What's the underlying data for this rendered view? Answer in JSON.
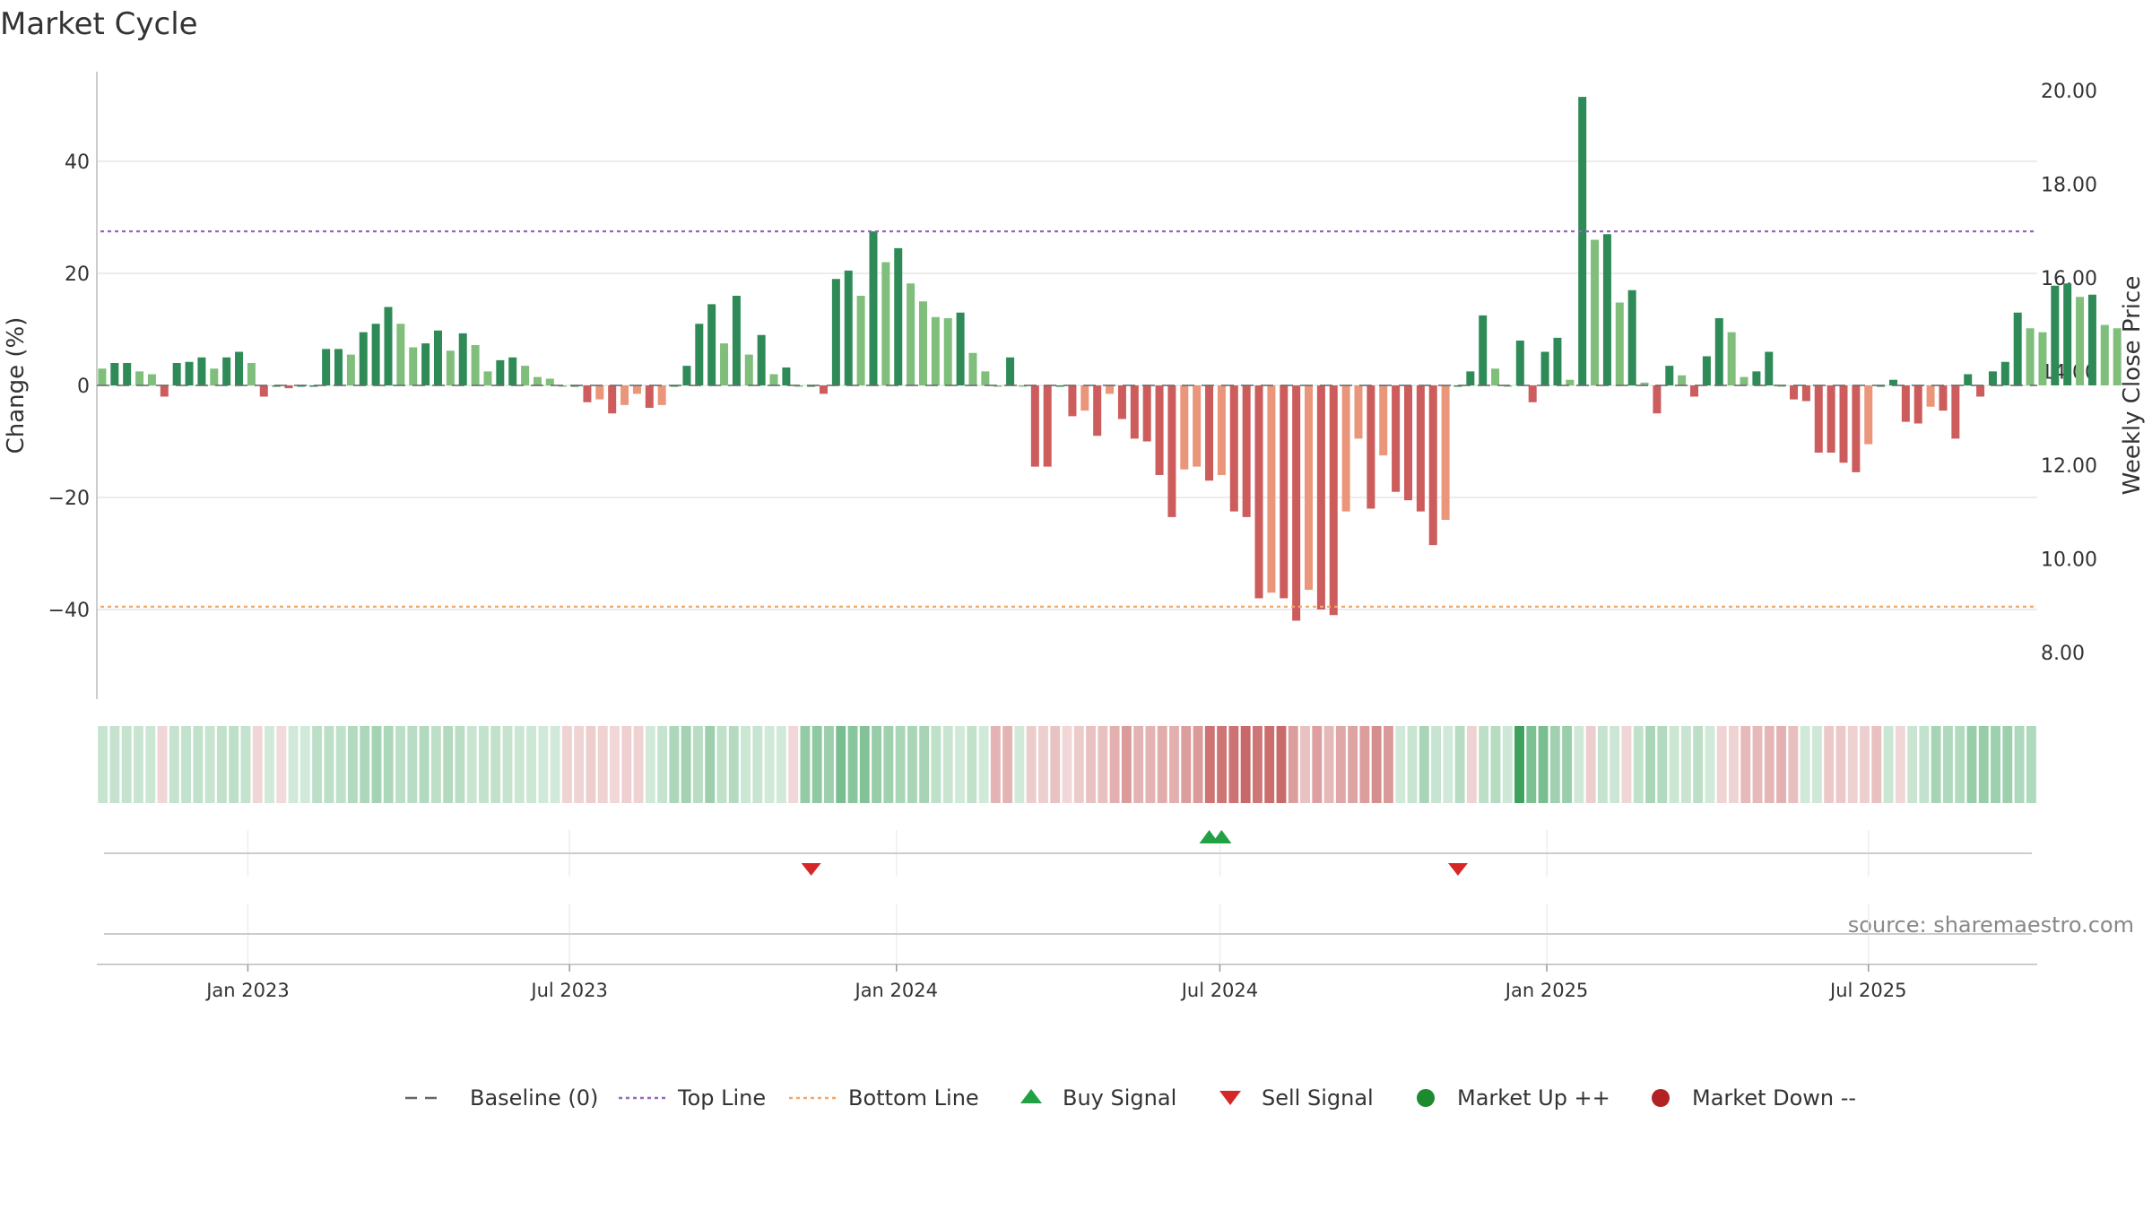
{
  "chart_data": {
    "type": "bar",
    "title": "Market Cycle",
    "ylabel": "Change (%)",
    "ylabel_right": "Weekly Close Price",
    "ylim": [
      -56,
      56
    ],
    "ylim_right": [
      7.0,
      20.4
    ],
    "yticks": [
      -40,
      -20,
      0,
      20,
      40
    ],
    "yticks_right": [
      "8.00",
      "10.00",
      "12.00",
      "14.00",
      "16.00",
      "18.00",
      "20.00"
    ],
    "xlim": [
      "2022-10-08",
      "2025-10-04"
    ],
    "xticks": [
      {
        "date": "2023-01-01",
        "label": "Jan 2023"
      },
      {
        "date": "2023-07-01",
        "label": "Jul 2023"
      },
      {
        "date": "2024-01-01",
        "label": "Jan 2024"
      },
      {
        "date": "2024-07-01",
        "label": "Jul 2024"
      },
      {
        "date": "2025-01-01",
        "label": "Jan 2025"
      },
      {
        "date": "2025-07-01",
        "label": "Jul 2025"
      }
    ],
    "top_line": 27.5,
    "bottom_line": -39.5,
    "start_week": "2022-10-11",
    "values": [
      3,
      4,
      4,
      2.5,
      2,
      -2,
      4,
      4.2,
      5,
      3,
      5,
      6,
      4,
      -2,
      0,
      -0.5,
      0,
      0,
      6.5,
      6.5,
      5.5,
      9.5,
      11,
      14,
      11,
      6.8,
      7.5,
      9.8,
      6.2,
      9.3,
      7.2,
      2.5,
      4.5,
      5,
      3.5,
      1.5,
      1.2,
      0,
      0,
      -3,
      -2.5,
      -5,
      -3.5,
      -1.5,
      -4,
      -3.5,
      0,
      3.5,
      11,
      14.5,
      7.5,
      16,
      5.5,
      9,
      2,
      3.2,
      0,
      0,
      -1.5,
      19,
      20.5,
      16,
      27.5,
      22,
      24.5,
      18.2,
      15,
      12.2,
      12,
      13,
      5.8,
      2.5,
      0,
      5,
      0,
      -14.5,
      -14.5,
      0,
      -5.5,
      -4.5,
      -9,
      -1.5,
      -6,
      -9.5,
      -10,
      -16,
      -23.5,
      -15,
      -14.5,
      -17,
      -16,
      -22.5,
      -23.5,
      -38,
      -37,
      -38,
      -42,
      -36.5,
      -40,
      -41,
      -22.5,
      -9.5,
      -22,
      -12.5,
      -19,
      -20.5,
      -22.5,
      -28.5,
      -24,
      0,
      2.5,
      12.5,
      3,
      0,
      8,
      -3,
      6,
      8.5,
      1,
      51.5,
      26,
      27,
      14.8,
      17,
      0.5,
      -5,
      3.5,
      1.8,
      -2,
      5.2,
      12,
      9.5,
      1.5,
      2.5,
      6,
      0,
      -2.5,
      -2.8,
      -12,
      -12,
      -13.8,
      -15.5,
      -10.5,
      0,
      1,
      -6.5,
      -6.8,
      -3.8,
      -4.5,
      -9.5,
      2,
      -2,
      2.5,
      4.2,
      13,
      10.2,
      9.5,
      17.8,
      18.2,
      15.8,
      16.2,
      10.8,
      10.2
    ],
    "sell_signals": [
      "2023-11-14",
      "2024-11-12"
    ],
    "buy_signals": [
      "2024-06-25",
      "2024-07-02"
    ],
    "source": "source: sharemaestro.com",
    "legend": [
      {
        "label": "Baseline (0)",
        "marker": "dashed-line",
        "color": "#666666"
      },
      {
        "label": "Top Line",
        "marker": "dotted-line",
        "color": "#9467bd"
      },
      {
        "label": "Bottom Line",
        "marker": "dotted-line",
        "color": "#f0a868"
      },
      {
        "label": "Buy Signal",
        "marker": "triangle-up",
        "color": "#22a046"
      },
      {
        "label": "Sell Signal",
        "marker": "triangle-down",
        "color": "#d62728"
      },
      {
        "label": "Market Up ++",
        "marker": "circle",
        "color": "#1e8a2e"
      },
      {
        "label": "Market Down --",
        "marker": "circle",
        "color": "#b22222"
      }
    ],
    "colors": {
      "up_strong": "#2e8b57",
      "up_weak": "#7fbf7b",
      "down_strong": "#cd5c5c",
      "down_weak": "#e9967a"
    },
    "legend_position": "bottom-center",
    "grid": true
  }
}
